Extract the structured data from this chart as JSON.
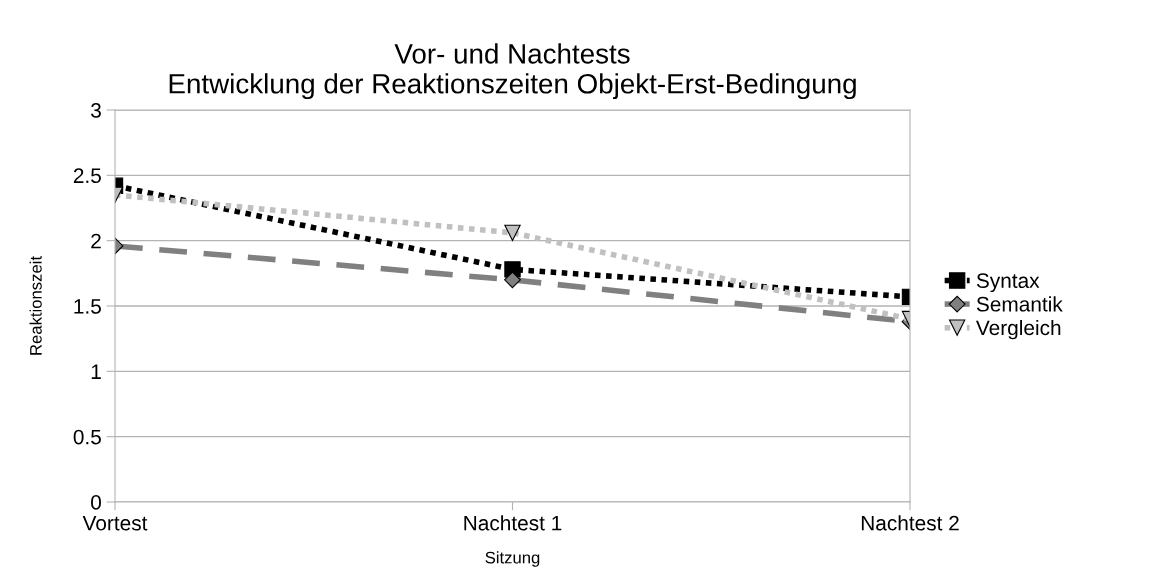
{
  "chart_data": {
    "type": "line",
    "title": "Vor- und Nachtests\nEntwicklung der Reaktionszeiten Objekt-Erst-Bedingung",
    "xlabel": "Sitzung",
    "ylabel": "Reaktionszeit",
    "categories": [
      "Vortest",
      "Nachtest 1",
      "Nachtest 2"
    ],
    "series": [
      {
        "name": "Syntax",
        "color": "#000000",
        "values": [
          2.42,
          1.78,
          1.57
        ],
        "marker": "square",
        "line_style": "dotted"
      },
      {
        "name": "Semantik",
        "color": "#808080",
        "values": [
          1.96,
          1.7,
          1.38
        ],
        "marker": "diamond",
        "line_style": "dashed"
      },
      {
        "name": "Vergleich",
        "color": "#c0c0c0",
        "values": [
          2.35,
          2.06,
          1.4
        ],
        "marker": "triangle",
        "line_style": "dotted"
      }
    ],
    "ylim": [
      0,
      3
    ],
    "yticks": [
      0,
      0.5,
      1,
      1.5,
      2,
      2.5,
      3
    ],
    "grid": "y",
    "legend": "right"
  }
}
